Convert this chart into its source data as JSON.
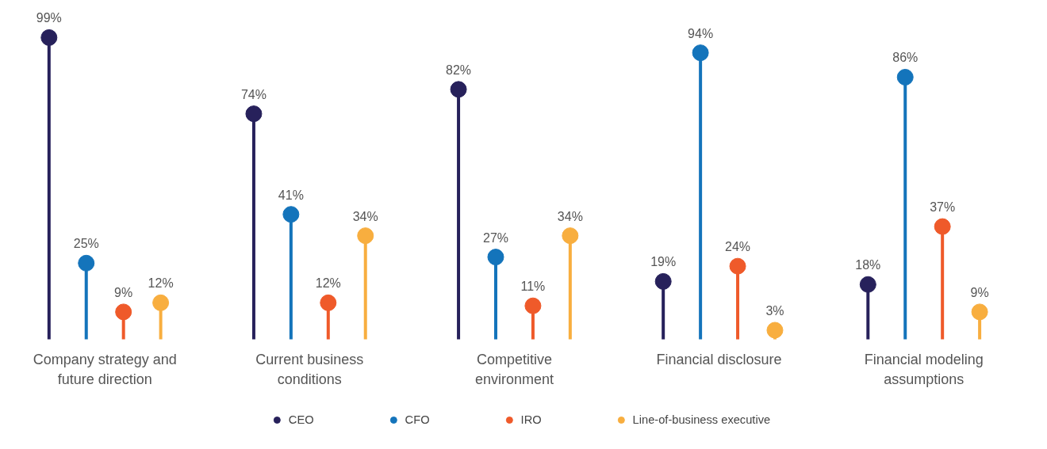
{
  "chart_data": {
    "type": "lollipop",
    "categories": [
      "Company strategy and future direction",
      "Current business conditions",
      "Competitive environment",
      "Financial disclosure",
      "Financial modeling assumptions"
    ],
    "series": [
      {
        "name": "CEO",
        "color": "#27215b",
        "values": [
          99,
          74,
          82,
          19,
          18
        ],
        "value_labels": [
          "99%",
          "74%",
          "82%",
          "19%",
          "18%"
        ]
      },
      {
        "name": "CFO",
        "color": "#1474bb",
        "values": [
          25,
          41,
          27,
          94,
          86
        ],
        "value_labels": [
          "25%",
          "41%",
          "27%",
          "94%",
          "86%"
        ]
      },
      {
        "name": "IRO",
        "color": "#ef5a2a",
        "values": [
          9,
          12,
          11,
          24,
          37
        ],
        "value_labels": [
          "9%",
          "12%",
          "11%",
          "24%",
          "37%"
        ]
      },
      {
        "name": "Line-of-business executive",
        "color": "#f8ae3f",
        "values": [
          12,
          34,
          34,
          3,
          9
        ],
        "value_labels": [
          "12%",
          "34%",
          "34%",
          "3%",
          "9%"
        ]
      }
    ],
    "legend": "bottom",
    "marker": "circle"
  }
}
